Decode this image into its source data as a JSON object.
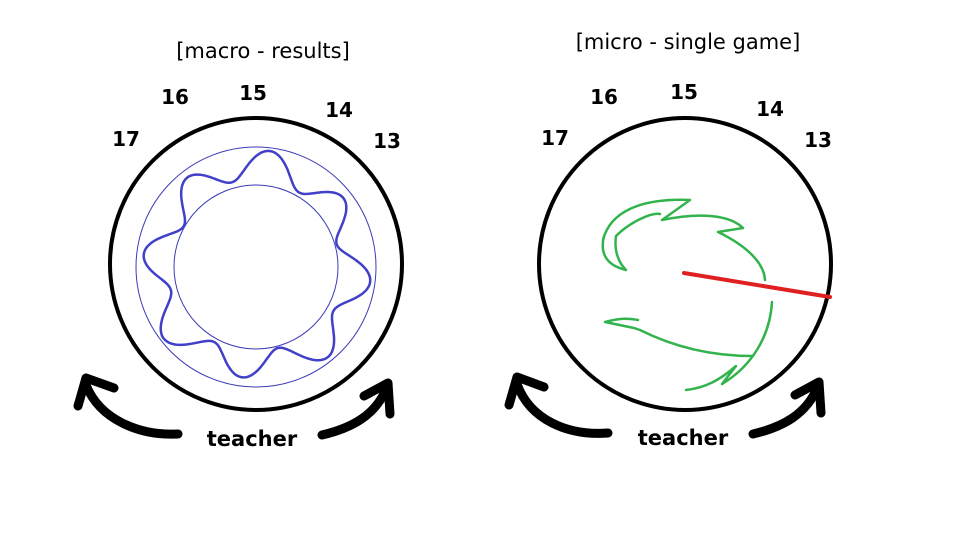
{
  "panels": [
    {
      "title": "[macro - results]",
      "seat_labels": [
        "17",
        "16",
        "15",
        "14",
        "13"
      ],
      "bottom_label": "teacher"
    },
    {
      "title": "[micro - single game]",
      "seat_labels": [
        "17",
        "16",
        "15",
        "14",
        "13"
      ],
      "bottom_label": "teacher"
    }
  ],
  "colors": {
    "outer_circle": "#000000",
    "band_circles": "#3a3ab8",
    "wavy_line": "#4040c8",
    "swirl": "#33b34d",
    "pointer": "#e02020",
    "arrows": "#000000"
  }
}
